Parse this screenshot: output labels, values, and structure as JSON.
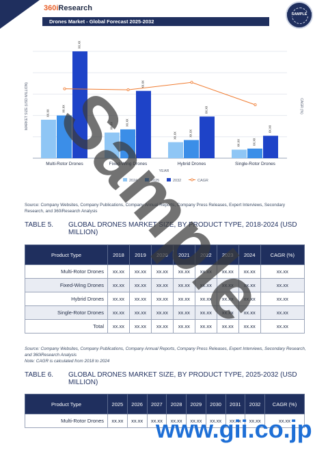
{
  "header": {
    "logo_prefix": "360i",
    "logo_suffix": "Research",
    "report_title": "Drones Market - Global Forecast 2025-2032",
    "badge_text": "SAMPLE"
  },
  "chart_data": {
    "type": "bar",
    "categories": [
      "Multi-Rotor Drones",
      "Fixed-Wing Drones",
      "Hybrid Drones",
      "Single-Rotor Drones"
    ],
    "series": [
      {
        "name": "2024",
        "values": [
          36,
          24,
          15,
          8
        ],
        "color": "#8fc6f5"
      },
      {
        "name": "2025",
        "values": [
          40,
          27,
          17,
          9
        ],
        "color": "#3b8ee8"
      },
      {
        "name": "2032",
        "values": [
          100,
          63,
          39,
          21
        ],
        "color": "#1e43c8"
      }
    ],
    "cagr_series": {
      "name": "CAGR",
      "values": [
        65,
        64,
        71,
        50
      ],
      "color": "#f07a2e"
    },
    "bar_label": "xx.xx",
    "xlabel": "YEAR",
    "ylabel": "MARKET SIZE (USD MILLION)",
    "y2label": "CAGR (%)"
  },
  "source1": "Source: Company Websites, Company Publications, Company Annual Reports, Company Press Releases, Expert Interviews, Secondary Research, and 360iResearch Analysis",
  "table5": {
    "number": "TABLE 5.",
    "title": "GLOBAL DRONES MARKET SIZE, BY PRODUCT TYPE, 2018-2024 (USD MILLION)",
    "headers": [
      "Product Type",
      "2018",
      "2019",
      "2020",
      "2021",
      "2022",
      "2023",
      "2024",
      "CAGR (%)"
    ],
    "rows": [
      [
        "Multi-Rotor Drones",
        "xx.xx",
        "xx.xx",
        "xx.xx",
        "xx.xx",
        "xx.xx",
        "xx.xx",
        "xx.xx",
        "xx.xx"
      ],
      [
        "Fixed-Wing Drones",
        "xx.xx",
        "xx.xx",
        "xx.xx",
        "xx.xx",
        "xx.xx",
        "xx.xx",
        "xx.xx",
        "xx.xx"
      ],
      [
        "Hybrid Drones",
        "xx.xx",
        "xx.xx",
        "xx.xx",
        "xx.xx",
        "xx.xx",
        "xx.xx",
        "xx.xx",
        "xx.xx"
      ],
      [
        "Single-Rotor Drones",
        "xx.xx",
        "xx.xx",
        "xx.xx",
        "xx.xx",
        "xx.xx",
        "xx.xx",
        "xx.xx",
        "xx.xx"
      ],
      [
        "Total",
        "xx.xx",
        "xx.xx",
        "xx.xx",
        "xx.xx",
        "xx.xx",
        "xx.xx",
        "xx.xx",
        "xx.xx"
      ]
    ]
  },
  "source2": "Source: Company Websites, Company Publications, Company Annual Reports, Company Press Releases, Expert Interviews, Secondary Research, and 360iResearch Analysis",
  "note2": "Note: CAGR is calculated from 2018 to 2024",
  "table6": {
    "number": "TABLE 6.",
    "title": "GLOBAL DRONES MARKET SIZE, BY PRODUCT TYPE, 2025-2032 (USD MILLION)",
    "headers": [
      "Product Type",
      "2025",
      "2026",
      "2027",
      "2028",
      "2029",
      "2030",
      "2031",
      "2032",
      "CAGR (%)"
    ],
    "rows": [
      [
        "Multi-Rotor Drones",
        "xx.xx",
        "xx.xx",
        "xx.xx",
        "xx.xx",
        "xx.xx",
        "xx.xx",
        "xx.xx",
        "xx.xx",
        "xx.xx"
      ]
    ]
  },
  "watermark": "Sample",
  "gii": "www.gii.co.jp"
}
